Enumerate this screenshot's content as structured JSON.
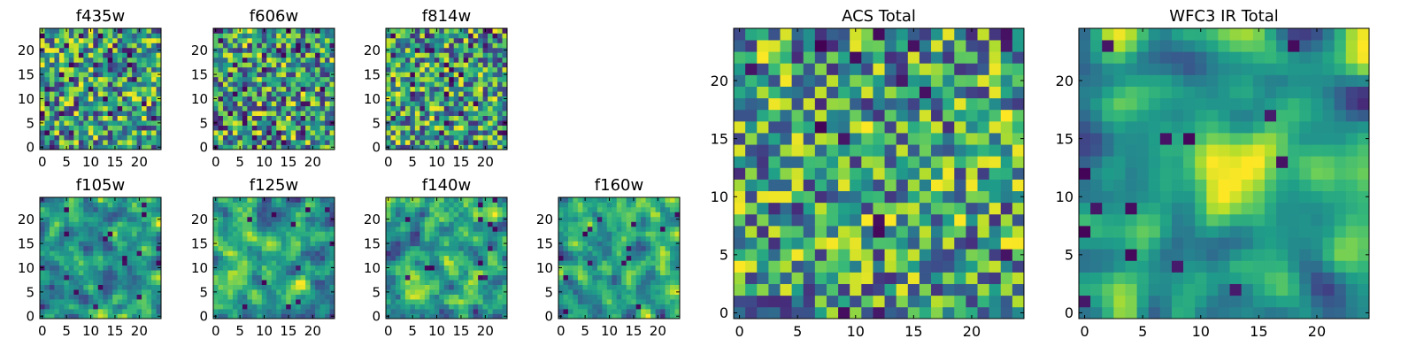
{
  "chart_data": [
    {
      "type": "heatmap",
      "title": "f435w",
      "xlabel": "",
      "ylabel": "",
      "xticks": [
        0,
        5,
        10,
        15,
        20
      ],
      "yticks": [
        0,
        5,
        10,
        15,
        20
      ],
      "xlim": [
        -0.5,
        24.5
      ],
      "ylim": [
        -0.5,
        24.5
      ],
      "grid_size": [
        25,
        25
      ],
      "colormap": "viridis",
      "seed": 11,
      "smooth": 0,
      "spikes": 0.06,
      "hotspot": null
    },
    {
      "type": "heatmap",
      "title": "f606w",
      "xlabel": "",
      "ylabel": "",
      "xticks": [
        0,
        5,
        10,
        15,
        20
      ],
      "yticks": [
        0,
        5,
        10,
        15,
        20
      ],
      "xlim": [
        -0.5,
        24.5
      ],
      "ylim": [
        -0.5,
        24.5
      ],
      "grid_size": [
        25,
        25
      ],
      "colormap": "viridis",
      "seed": 23,
      "smooth": 0,
      "spikes": 0.06,
      "hotspot": null
    },
    {
      "type": "heatmap",
      "title": "f814w",
      "xlabel": "",
      "ylabel": "",
      "xticks": [
        0,
        5,
        10,
        15,
        20
      ],
      "yticks": [
        0,
        5,
        10,
        15,
        20
      ],
      "xlim": [
        -0.5,
        24.5
      ],
      "ylim": [
        -0.5,
        24.5
      ],
      "grid_size": [
        25,
        25
      ],
      "colormap": "viridis",
      "seed": 37,
      "smooth": 0,
      "spikes": 0.06,
      "hotspot": null
    },
    {
      "type": "heatmap",
      "title": "f105w",
      "xlabel": "",
      "ylabel": "",
      "xticks": [
        0,
        5,
        10,
        15,
        20
      ],
      "yticks": [
        0,
        5,
        10,
        15,
        20
      ],
      "xlim": [
        -0.5,
        24.5
      ],
      "ylim": [
        -0.5,
        24.5
      ],
      "grid_size": [
        25,
        25
      ],
      "colormap": "viridis",
      "seed": 41,
      "smooth": 1,
      "spikes": 0.02,
      "hotspot": null
    },
    {
      "type": "heatmap",
      "title": "f125w",
      "xlabel": "",
      "ylabel": "",
      "xticks": [
        0,
        5,
        10,
        15,
        20
      ],
      "yticks": [
        0,
        5,
        10,
        15,
        20
      ],
      "xlim": [
        -0.5,
        24.5
      ],
      "ylim": [
        -0.5,
        24.5
      ],
      "grid_size": [
        25,
        25
      ],
      "colormap": "viridis",
      "seed": 53,
      "smooth": 1,
      "spikes": 0.02,
      "hotspot": null
    },
    {
      "type": "heatmap",
      "title": "f140w",
      "xlabel": "",
      "ylabel": "",
      "xticks": [
        0,
        5,
        10,
        15,
        20
      ],
      "yticks": [
        0,
        5,
        10,
        15,
        20
      ],
      "xlim": [
        -0.5,
        24.5
      ],
      "ylim": [
        -0.5,
        24.5
      ],
      "grid_size": [
        25,
        25
      ],
      "colormap": "viridis",
      "seed": 67,
      "smooth": 1,
      "spikes": 0.02,
      "hotspot": null
    },
    {
      "type": "heatmap",
      "title": "f160w",
      "xlabel": "",
      "ylabel": "",
      "xticks": [
        0,
        5,
        10,
        15,
        20
      ],
      "yticks": [
        0,
        5,
        10,
        15,
        20
      ],
      "xlim": [
        -0.5,
        24.5
      ],
      "ylim": [
        -0.5,
        24.5
      ],
      "grid_size": [
        25,
        25
      ],
      "colormap": "viridis",
      "seed": 79,
      "smooth": 1,
      "spikes": 0.03,
      "hotspot": null
    },
    {
      "type": "heatmap",
      "title": "ACS Total",
      "xlabel": "",
      "ylabel": "",
      "xticks": [
        0,
        5,
        10,
        15,
        20
      ],
      "yticks": [
        0,
        5,
        10,
        15,
        20
      ],
      "xlim": [
        -0.5,
        24.5
      ],
      "ylim": [
        -0.5,
        24.5
      ],
      "grid_size": [
        25,
        25
      ],
      "colormap": "viridis",
      "seed": 97,
      "smooth": 0,
      "spikes": 0.03,
      "hotspot": null
    },
    {
      "type": "heatmap",
      "title": "WFC3 IR Total",
      "xlabel": "",
      "ylabel": "",
      "xticks": [
        0,
        5,
        10,
        15,
        20
      ],
      "yticks": [
        0,
        5,
        10,
        15,
        20
      ],
      "xlim": [
        -0.5,
        24.5
      ],
      "ylim": [
        -0.5,
        24.5
      ],
      "grid_size": [
        25,
        25
      ],
      "colormap": "viridis",
      "seed": 113,
      "smooth": 2,
      "spikes": 0.03,
      "hotspot": {
        "x": 13,
        "y": 12,
        "sigma": 2.2,
        "amplitude": 0.45
      }
    }
  ]
}
